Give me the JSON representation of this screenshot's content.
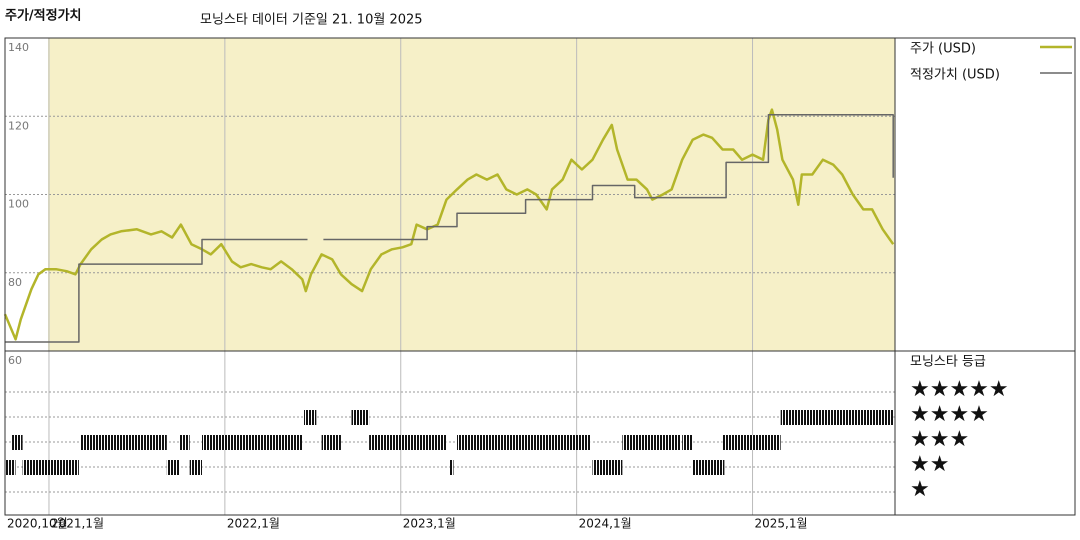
{
  "chart_data": {
    "type": "line",
    "title": "주가/적정가치",
    "subtitle": "모닝스타 데이터 기준일 21. 10월 2025",
    "xlim": [
      2020.75,
      2025.81
    ],
    "xticks": [
      {
        "value": 2020.75,
        "label": "2020,10월"
      },
      {
        "value": 2021,
        "label": "2021,1월"
      },
      {
        "value": 2022,
        "label": "2022,1월"
      },
      {
        "value": 2023,
        "label": "2023,1월"
      },
      {
        "value": 2024,
        "label": "2024,1월"
      },
      {
        "value": 2025,
        "label": "2025,1월"
      }
    ],
    "ylim": [
      60,
      140
    ],
    "yticks": [
      60,
      80,
      100,
      120,
      140
    ],
    "grid": true,
    "series": [
      {
        "name": "주가 (USD)",
        "color": "#b3b52a",
        "x": [
          2020.75,
          2020.81,
          2020.84,
          2020.9,
          2020.94,
          2020.98,
          2021.04,
          2021.1,
          2021.15,
          2021.18,
          2021.24,
          2021.3,
          2021.35,
          2021.41,
          2021.5,
          2021.58,
          2021.64,
          2021.7,
          2021.75,
          2021.81,
          2021.87,
          2021.92,
          2021.98,
          2022.04,
          2022.09,
          2022.15,
          2022.21,
          2022.26,
          2022.32,
          2022.38,
          2022.44,
          2022.46,
          2022.49,
          2022.55,
          2022.61,
          2022.66,
          2022.72,
          2022.78,
          2022.83,
          2022.89,
          2022.95,
          2023.01,
          2023.06,
          2023.09,
          2023.15,
          2023.21,
          2023.26,
          2023.32,
          2023.38,
          2023.43,
          2023.49,
          2023.55,
          2023.6,
          2023.66,
          2023.72,
          2023.77,
          2023.83,
          2023.86,
          2023.92,
          2023.97,
          2024.03,
          2024.09,
          2024.15,
          2024.2,
          2024.23,
          2024.29,
          2024.34,
          2024.4,
          2024.43,
          2024.49,
          2024.54,
          2024.6,
          2024.66,
          2024.72,
          2024.77,
          2024.83,
          2024.89,
          2024.94,
          2025.0,
          2025.06,
          2025.09,
          2025.11,
          2025.14,
          2025.17,
          2025.23,
          2025.26,
          2025.28,
          2025.34,
          2025.4,
          2025.46,
          2025.51,
          2025.57,
          2025.63,
          2025.68,
          2025.74,
          2025.8
        ],
        "values": [
          69.4,
          63.0,
          68.1,
          75.8,
          79.6,
          80.9,
          80.9,
          80.4,
          79.6,
          82.2,
          86.0,
          88.5,
          89.8,
          90.6,
          91.1,
          89.8,
          90.6,
          89.0,
          92.3,
          87.3,
          86.0,
          84.7,
          87.3,
          82.9,
          81.4,
          82.2,
          81.4,
          80.9,
          82.9,
          80.9,
          78.3,
          75.3,
          79.6,
          84.7,
          83.4,
          79.6,
          77.1,
          75.3,
          80.9,
          84.7,
          86.0,
          86.5,
          87.3,
          92.3,
          91.1,
          92.3,
          98.7,
          101.3,
          103.8,
          105.1,
          103.8,
          105.1,
          101.3,
          100.0,
          101.3,
          100.0,
          96.2,
          101.3,
          103.8,
          108.9,
          106.4,
          108.9,
          114.0,
          117.8,
          111.5,
          103.8,
          103.8,
          101.3,
          98.7,
          100.0,
          101.3,
          108.9,
          114.0,
          115.3,
          114.5,
          111.5,
          111.5,
          108.9,
          110.2,
          108.9,
          119.1,
          121.7,
          116.6,
          108.9,
          103.8,
          97.4,
          105.1,
          105.1,
          108.9,
          107.6,
          105.1,
          100.0,
          96.2,
          96.2,
          91.1,
          87.3
        ]
      },
      {
        "name": "적정가치 (USD)",
        "color": "#666666",
        "x": [
          2020.75,
          2021.17,
          2021.17,
          2021.87,
          2021.87,
          2022.47,
          2022.5,
          2022.56,
          2023.15,
          2023.15,
          2023.32,
          2023.32,
          2023.71,
          2023.71,
          2024.09,
          2024.09,
          2024.33,
          2024.33,
          2024.85,
          2024.85,
          2025.09,
          2025.09,
          2025.8,
          2025.8
        ],
        "values": [
          62.3,
          62.3,
          82.2,
          82.2,
          88.5,
          88.5,
          null,
          88.5,
          88.5,
          91.8,
          91.8,
          95.2,
          95.2,
          98.7,
          98.7,
          102.3,
          102.3,
          99.2,
          99.2,
          108.2,
          108.2,
          120.4,
          120.4,
          104.3
        ]
      }
    ],
    "rating_title": "모닝스타 등급",
    "rating_levels": [
      {
        "value": 5,
        "label": "★★★★★"
      },
      {
        "value": 4,
        "label": "★★★★"
      },
      {
        "value": 3,
        "label": "★★★"
      },
      {
        "value": 2,
        "label": "★★"
      },
      {
        "value": 1,
        "label": "★"
      }
    ],
    "ratings": [
      {
        "x": [
          2020.75,
          2020.81
        ],
        "stars": 2
      },
      {
        "x": [
          2020.79,
          2020.85
        ],
        "stars": 3
      },
      {
        "x": [
          2020.85,
          2021.17
        ],
        "stars": 2
      },
      {
        "x": [
          2021.18,
          2021.67
        ],
        "stars": 3
      },
      {
        "x": [
          2021.67,
          2021.74
        ],
        "stars": 2
      },
      {
        "x": [
          2021.74,
          2021.8
        ],
        "stars": 3
      },
      {
        "x": [
          2021.8,
          2021.87
        ],
        "stars": 2
      },
      {
        "x": [
          2021.87,
          2022.44
        ],
        "stars": 3
      },
      {
        "x": [
          2022.45,
          2022.52
        ],
        "stars": 4
      },
      {
        "x": [
          2022.55,
          2022.66
        ],
        "stars": 3
      },
      {
        "x": [
          2022.72,
          2022.82
        ],
        "stars": 4
      },
      {
        "x": [
          2022.82,
          2023.26
        ],
        "stars": 3
      },
      {
        "x": [
          2023.28,
          2023.3
        ],
        "stars": 2
      },
      {
        "x": [
          2023.32,
          2024.08
        ],
        "stars": 3
      },
      {
        "x": [
          2024.09,
          2024.26
        ],
        "stars": 2
      },
      {
        "x": [
          2024.26,
          2024.59
        ],
        "stars": 3
      },
      {
        "x": [
          2024.6,
          2024.66
        ],
        "stars": 3
      },
      {
        "x": [
          2024.66,
          2024.84
        ],
        "stars": 2
      },
      {
        "x": [
          2024.83,
          2025.16
        ],
        "stars": 3
      },
      {
        "x": [
          2025.16,
          2025.8
        ],
        "stars": 4
      }
    ]
  }
}
